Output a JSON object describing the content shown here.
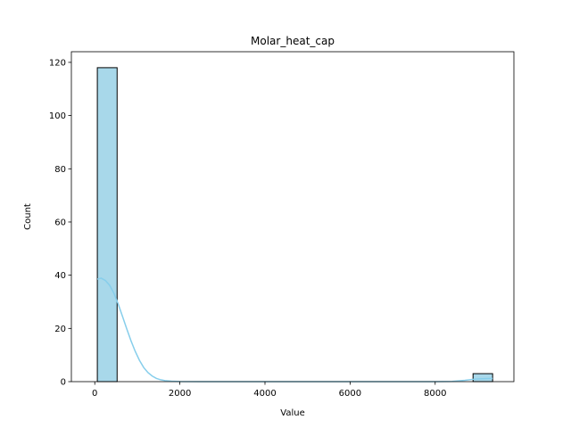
{
  "chart_data": {
    "type": "bar",
    "title": "Molar_heat_cap",
    "xlabel": "Value",
    "ylabel": "Count",
    "xlim": [
      -550,
      9850
    ],
    "ylim": [
      0,
      124
    ],
    "xticks": [
      0,
      2000,
      4000,
      6000,
      8000
    ],
    "yticks": [
      0,
      20,
      40,
      60,
      80,
      100,
      120
    ],
    "bins": [
      {
        "x0": 60,
        "x1": 525,
        "count": 118
      },
      {
        "x0": 8890,
        "x1": 9350,
        "count": 3
      }
    ],
    "kde": [
      [
        60,
        38.5
      ],
      [
        150,
        38.9
      ],
      [
        250,
        38.0
      ],
      [
        350,
        36.2
      ],
      [
        450,
        33.2
      ],
      [
        550,
        29.2
      ],
      [
        650,
        24.6
      ],
      [
        750,
        19.9
      ],
      [
        850,
        15.4
      ],
      [
        950,
        11.4
      ],
      [
        1050,
        8.0
      ],
      [
        1150,
        5.3
      ],
      [
        1250,
        3.4
      ],
      [
        1350,
        2.1
      ],
      [
        1450,
        1.2
      ],
      [
        1550,
        0.7
      ],
      [
        1650,
        0.4
      ],
      [
        1800,
        0.15
      ],
      [
        2000,
        0.05
      ],
      [
        2500,
        0.0
      ],
      [
        8000,
        0.0
      ],
      [
        8400,
        0.1
      ],
      [
        8700,
        0.5
      ],
      [
        8900,
        0.9
      ],
      [
        9100,
        1.1
      ],
      [
        9350,
        1.2
      ]
    ],
    "bar_color": "#a8d8ea",
    "bar_edge_color": "#000000",
    "kde_color": "#87ceeb",
    "grid": false
  }
}
